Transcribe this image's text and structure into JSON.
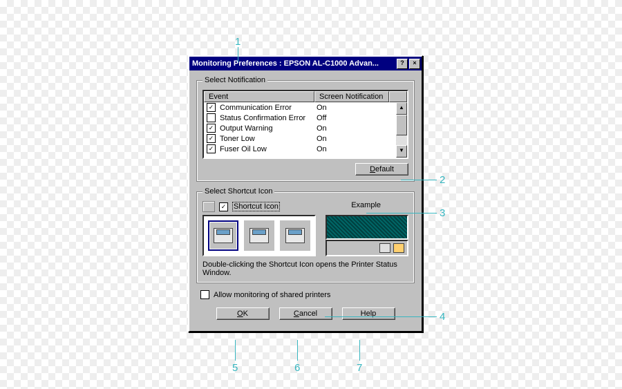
{
  "title": "Monitoring Preferences : EPSON AL-C1000 Advan...",
  "group_notification": "Select Notification",
  "col_event": "Event",
  "col_screen": "Screen Notification",
  "events": [
    {
      "label": "Communication Error",
      "checked": true,
      "screen": "On"
    },
    {
      "label": "Status Confirmation Error",
      "checked": false,
      "screen": "Off"
    },
    {
      "label": "Output Warning",
      "checked": true,
      "screen": "On"
    },
    {
      "label": "Toner Low",
      "checked": true,
      "screen": "On"
    },
    {
      "label": "Fuser Oil Low",
      "checked": true,
      "screen": "On"
    }
  ],
  "default_btn": {
    "pre": "",
    "u": "D",
    "post": "efault"
  },
  "group_shortcut": "Select Shortcut Icon",
  "shortcut_chk_label": "Shortcut Icon",
  "shortcut_checked": true,
  "example_label": "Example",
  "help_text": "Double-clicking the Shortcut Icon opens the Printer Status Window.",
  "allow_label": "Allow monitoring of shared printers",
  "allow_checked": false,
  "ok_btn": {
    "pre": "",
    "u": "O",
    "post": "K"
  },
  "cancel_btn": {
    "pre": "",
    "u": "C",
    "post": "ancel"
  },
  "help_btn": {
    "pre": "",
    "u": "H",
    "post": "elp"
  },
  "callouts": {
    "c1": "1",
    "c2": "2",
    "c3": "3",
    "c4": "4",
    "c5": "5",
    "c6": "6",
    "c7": "7"
  }
}
